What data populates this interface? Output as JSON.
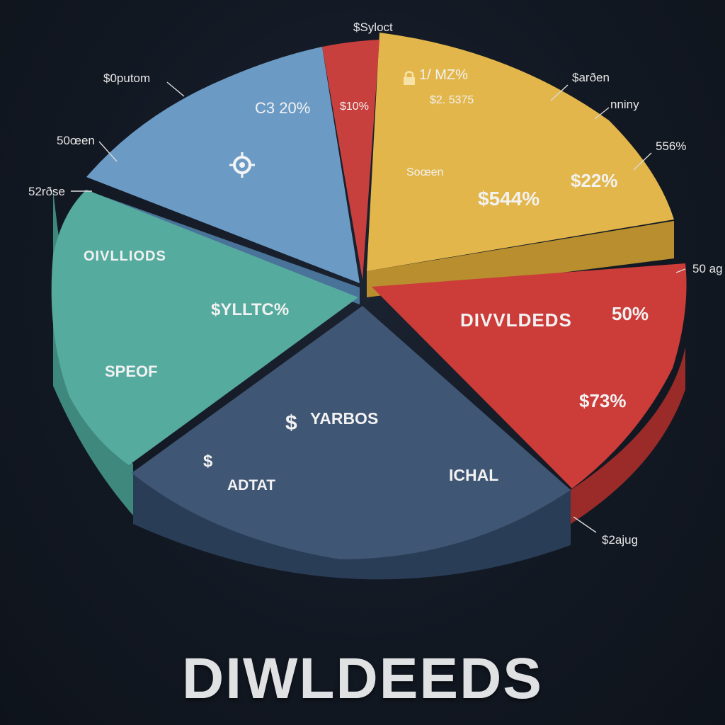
{
  "chart_data": {
    "type": "pie",
    "title": "DIWLDEEDS",
    "slices": [
      {
        "key": "steelblue",
        "color": "#6b9bc5",
        "labels": [
          "C3 20%"
        ],
        "icon": "target-icon"
      },
      {
        "key": "smallred",
        "color": "#c8403e",
        "labels": [
          "$10%"
        ]
      },
      {
        "key": "gold",
        "color": "#e2b64a",
        "labels": [
          "1/ MZ%",
          "$2. 5375",
          "Soœen",
          "$544%",
          "$22%"
        ],
        "icon": "lock-icon"
      },
      {
        "key": "red",
        "color": "#cc3c39",
        "labels": [
          "DIVVLDEDS",
          "50%",
          "$73%"
        ]
      },
      {
        "key": "navy",
        "color": "#3f5674",
        "labels": [
          "$",
          "YARBOS",
          "$",
          "ADTAT",
          "ICHAL"
        ]
      },
      {
        "key": "teal",
        "color": "#55ab9e",
        "labels": [
          "OIVLLIODS",
          "$YLLTC%",
          "SPEOF"
        ]
      }
    ],
    "callouts": [
      "$Syloct",
      "$0putom",
      "50œen",
      "52rðse",
      "$arðen",
      "nniny",
      "556%",
      "50 ag",
      "$2ajug"
    ]
  }
}
